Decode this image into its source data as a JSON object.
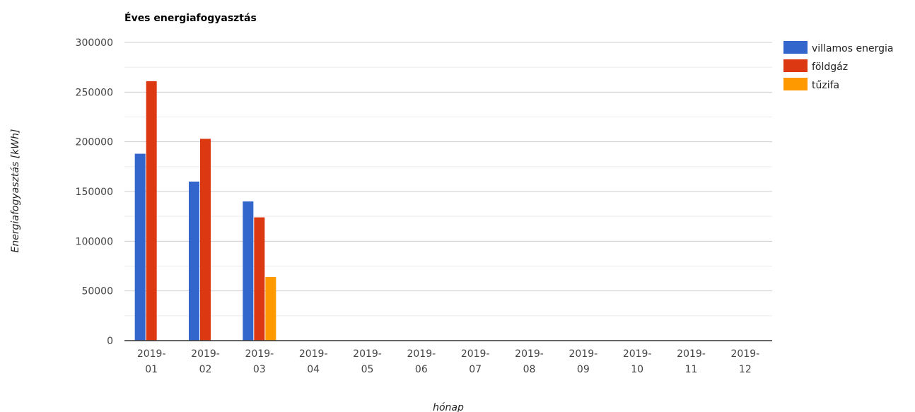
{
  "chart_data": {
    "type": "bar",
    "title": "Éves energiafogyasztás",
    "xlabel": "hónap",
    "ylabel": "Energiafogyasztás [kWh]",
    "ylim": [
      0,
      300000
    ],
    "yticks": [
      "0",
      "50000",
      "100000",
      "150000",
      "200000",
      "250000",
      "300000"
    ],
    "grid": true,
    "legend_position": "right",
    "categories": [
      "2019-01",
      "2019-02",
      "2019-03",
      "2019-04",
      "2019-05",
      "2019-06",
      "2019-07",
      "2019-08",
      "2019-09",
      "2019-10",
      "2019-11",
      "2019-12"
    ],
    "series": [
      {
        "name": "villamos energia",
        "color": "#3366cc",
        "values": [
          188000,
          160000,
          140000,
          0,
          0,
          0,
          0,
          0,
          0,
          0,
          0,
          0
        ]
      },
      {
        "name": "földgáz",
        "color": "#dc3912",
        "values": [
          261000,
          203000,
          124000,
          0,
          0,
          0,
          0,
          0,
          0,
          0,
          0,
          0
        ]
      },
      {
        "name": "tűzifa",
        "color": "#ff9900",
        "values": [
          0,
          0,
          64000,
          0,
          0,
          0,
          0,
          0,
          0,
          0,
          0,
          0
        ]
      }
    ]
  }
}
